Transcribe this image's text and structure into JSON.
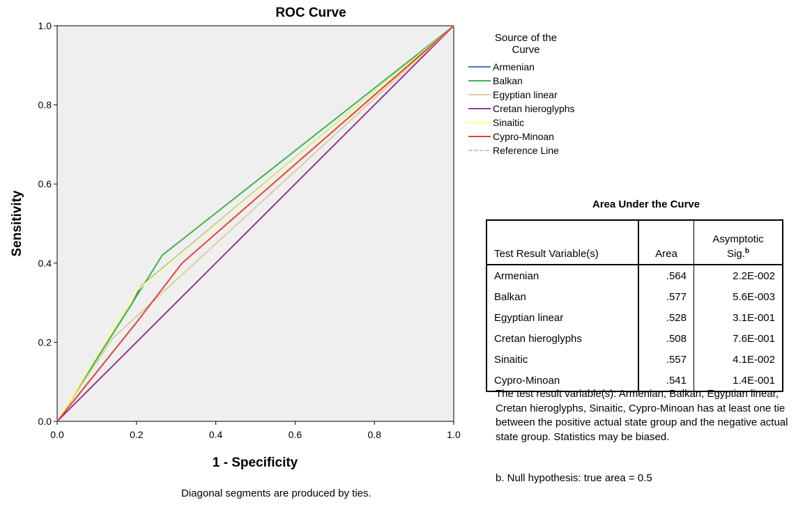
{
  "chart_data": {
    "type": "line",
    "title": "ROC Curve",
    "xlabel": "1 - Specificity",
    "ylabel": "Sensitivity",
    "xlim": [
      0,
      1
    ],
    "ylim": [
      0,
      1
    ],
    "xticks": [
      "0.0",
      "0.2",
      "0.4",
      "0.6",
      "0.8",
      "1.0"
    ],
    "yticks": [
      "0.0",
      "0.2",
      "0.4",
      "0.6",
      "0.8",
      "1.0"
    ],
    "legend_placement": "right",
    "legend_title": [
      "Source of the",
      "Curve"
    ],
    "series": [
      {
        "name": "Armenian",
        "color": "#5470c6",
        "x": [
          0,
          0.19,
          0.21,
          1
        ],
        "y": [
          0,
          0.3,
          0.34,
          1
        ]
      },
      {
        "name": "Balkan",
        "color": "#3cb44b",
        "x": [
          0,
          0.19,
          0.265,
          1
        ],
        "y": [
          0,
          0.3,
          0.42,
          1
        ]
      },
      {
        "name": "Egyptian linear",
        "color": "#d9ceaa",
        "x": [
          0,
          0.14,
          1
        ],
        "y": [
          0,
          0.21,
          1
        ]
      },
      {
        "name": "Cretan hieroglyphs",
        "color": "#8e3b8e",
        "x": [
          0,
          1
        ],
        "y": [
          0,
          1
        ]
      },
      {
        "name": "Sinaitic",
        "color": "#ffff80",
        "x": [
          0,
          0.2,
          1
        ],
        "y": [
          0,
          0.33,
          1
        ]
      },
      {
        "name": "Cypro-Minoan",
        "color": "#e8403b",
        "x": [
          0,
          0.2,
          0.315,
          1
        ],
        "y": [
          0,
          0.25,
          0.4,
          1
        ]
      }
    ],
    "reference_line": {
      "name": "Reference Line",
      "color": "#c8c8d2",
      "x": [
        0,
        1
      ],
      "y": [
        0,
        1
      ]
    },
    "plot_background": "#efefef"
  },
  "auc_table": {
    "title": "Area Under the Curve",
    "header": {
      "variable": "Test Result Variable(s)",
      "area": "Area",
      "sig_line1": "Asymptotic",
      "sig_line2": "Sig.",
      "sig_sup": "b"
    },
    "rows": [
      {
        "variable": "Armenian",
        "area": ".564",
        "sig": "2.2E-002"
      },
      {
        "variable": "Balkan",
        "area": ".577",
        "sig": "5.6E-003"
      },
      {
        "variable": "Egyptian linear",
        "area": ".528",
        "sig": "3.1E-001"
      },
      {
        "variable": "Cretan hieroglyphs",
        "area": ".508",
        "sig": "7.6E-001"
      },
      {
        "variable": "Sinaitic",
        "area": ".557",
        "sig": "4.1E-002"
      },
      {
        "variable": "Cypro-Minoan",
        "area": ".541",
        "sig": "1.4E-001"
      }
    ],
    "footnote": "The test result variable(s): Armenian, Balkan, Egyptian linear, Cretan hieroglyphs, Sinaitic, Cypro-Minoan has at least one tie between the positive actual state group and the negative actual state group. Statistics may be biased.",
    "footnote_b": "b. Null hypothesis: true area = 0.5"
  },
  "bottom_note": "Diagonal segments are produced by ties."
}
